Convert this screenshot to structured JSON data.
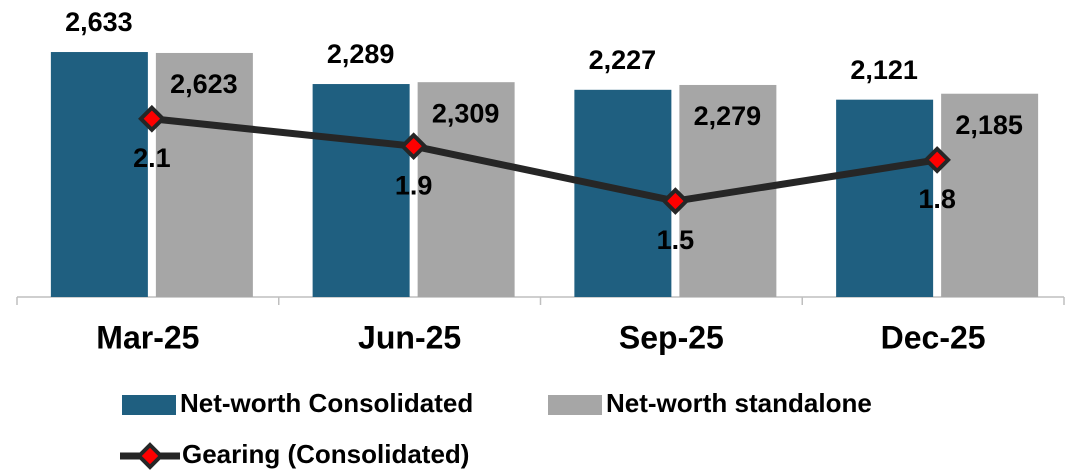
{
  "chart_data": {
    "type": "bar-line",
    "categories": [
      "Mar-25",
      "Jun-25",
      "Sep-25",
      "Dec-25"
    ],
    "series": [
      {
        "name": "Net-worth Consolidated",
        "color": "#1f5f80",
        "type": "bar",
        "values": [
          2633,
          2289,
          2227,
          2121
        ],
        "value_labels": [
          "2,633",
          "2,289",
          "2,227",
          "2,121"
        ]
      },
      {
        "name": "Net-worth standalone",
        "color": "#a6a6a6",
        "type": "bar",
        "values": [
          2623,
          2309,
          2279,
          2185
        ],
        "value_labels": [
          "2,623",
          "2,309",
          "2,279",
          "2,185"
        ]
      },
      {
        "name": "Gearing (Consolidated)",
        "color": "#262626",
        "marker_color": "#ff0000",
        "type": "line",
        "axis": "y2",
        "values": [
          2.1,
          1.9,
          1.5,
          1.8
        ]
      }
    ],
    "ylim": [
      0,
      2800
    ],
    "y2lim": [
      0.8,
      2.7
    ],
    "legend": "bottom"
  }
}
